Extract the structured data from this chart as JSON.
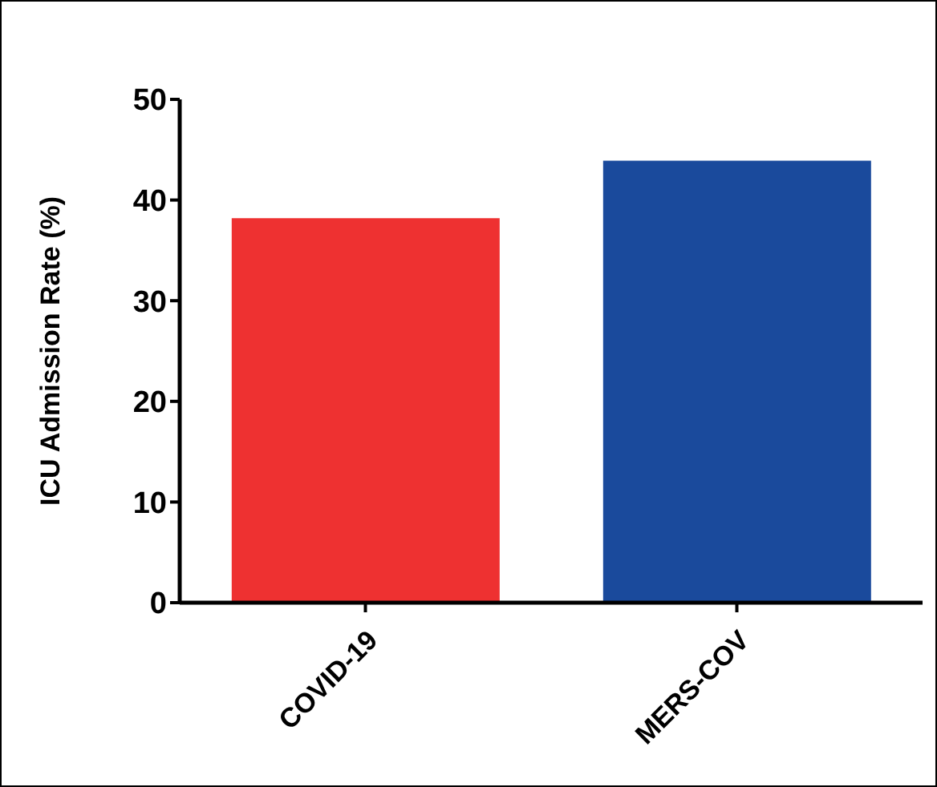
{
  "chart_data": {
    "type": "bar",
    "ylabel": "ICU Admission Rate (%)",
    "categories": [
      "COVID-19",
      "MERS-COV"
    ],
    "values": [
      38.2,
      43.9
    ],
    "colors": [
      "#ee3131",
      "#1a4a9c"
    ],
    "ylim": [
      0,
      50
    ],
    "yticks": [
      0,
      10,
      20,
      30,
      40,
      50
    ],
    "grid": false,
    "legend": false
  }
}
